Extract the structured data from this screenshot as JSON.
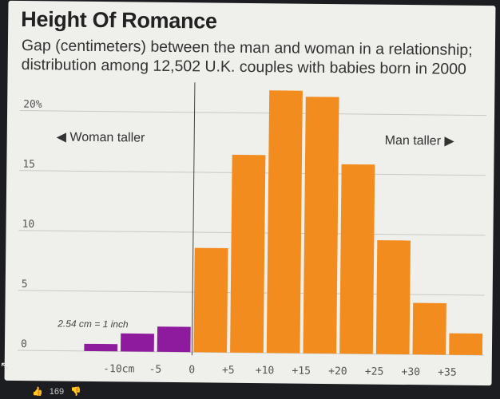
{
  "title": "Height Of Romance",
  "subtitle_line1": "Gap (centimeters) between the man and woman in a relationship;",
  "subtitle_line2": "distribution among 12,502 U.K. couples with babies born in 2000",
  "annotations": {
    "woman_taller": "◀ Woman taller",
    "man_taller": "Man taller ▶",
    "unit_note": "2.54 cm = 1 inch"
  },
  "footer": {
    "like_count": "169"
  },
  "colors": {
    "woman": "#8e1a9e",
    "man": "#f28c1e",
    "background": "#efefeb"
  },
  "chart_data": {
    "type": "bar",
    "x_tick_labels": [
      "-10cm",
      "-5",
      "0",
      "+5",
      "+10",
      "+15",
      "+20",
      "+25",
      "+30",
      "+35"
    ],
    "x_ticks": [
      -10,
      -5,
      0,
      5,
      10,
      15,
      20,
      25,
      30,
      35
    ],
    "y_tick_labels": [
      "0",
      "5",
      "10",
      "15",
      "20%"
    ],
    "y_ticks": [
      0,
      5,
      10,
      15,
      20
    ],
    "ylim": [
      0,
      22.5
    ],
    "xlim": [
      -18,
      40
    ],
    "bin_width": 5,
    "bars": [
      {
        "start": -15,
        "value": 0.6,
        "group": "woman"
      },
      {
        "start": -10,
        "value": 1.5,
        "group": "woman"
      },
      {
        "start": -5,
        "value": 2.1,
        "group": "woman"
      },
      {
        "start": 0,
        "value": 8.7,
        "group": "man"
      },
      {
        "start": 5,
        "value": 16.5,
        "group": "man"
      },
      {
        "start": 10,
        "value": 21.9,
        "group": "man"
      },
      {
        "start": 15,
        "value": 21.4,
        "group": "man"
      },
      {
        "start": 20,
        "value": 15.8,
        "group": "man"
      },
      {
        "start": 25,
        "value": 9.5,
        "group": "man"
      },
      {
        "start": 30,
        "value": 4.3,
        "group": "man"
      },
      {
        "start": 35,
        "value": 1.8,
        "group": "man"
      }
    ],
    "grid": true
  }
}
